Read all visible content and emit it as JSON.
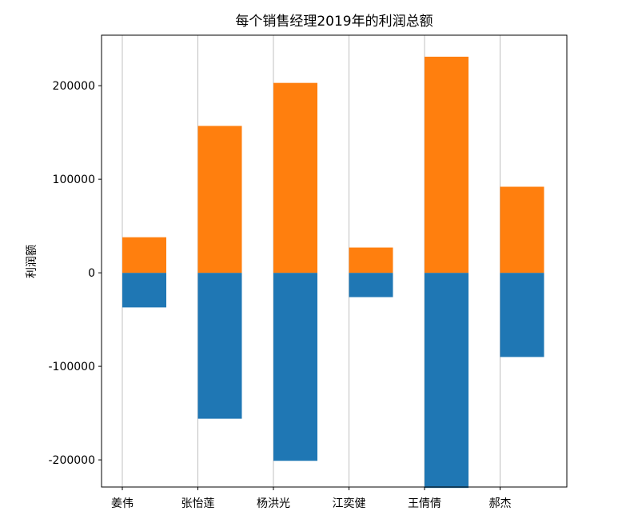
{
  "chart_data": {
    "type": "bar",
    "title": "每个销售经理2019年的利润总额",
    "xlabel": "",
    "ylabel": "利润额",
    "categories": [
      "姜伟",
      "张怡莲",
      "杨洪光",
      "江奕健",
      "王倩倩",
      "郝杰"
    ],
    "series": [
      {
        "color": "#1f77b4",
        "values": [
          -37000,
          -156000,
          -201000,
          -26000,
          -230000,
          -90000
        ]
      },
      {
        "color": "#ff7f0e",
        "values": [
          38000,
          157000,
          203000,
          27000,
          231000,
          92000
        ]
      }
    ],
    "yticks": [
      -200000,
      -100000,
      0,
      100000,
      200000
    ],
    "ytick_labels": [
      "-200000",
      "-100000",
      "0",
      "100000",
      "200000"
    ],
    "ylim": [
      -229000,
      254000
    ],
    "grid": {
      "x": true,
      "y": false
    }
  }
}
